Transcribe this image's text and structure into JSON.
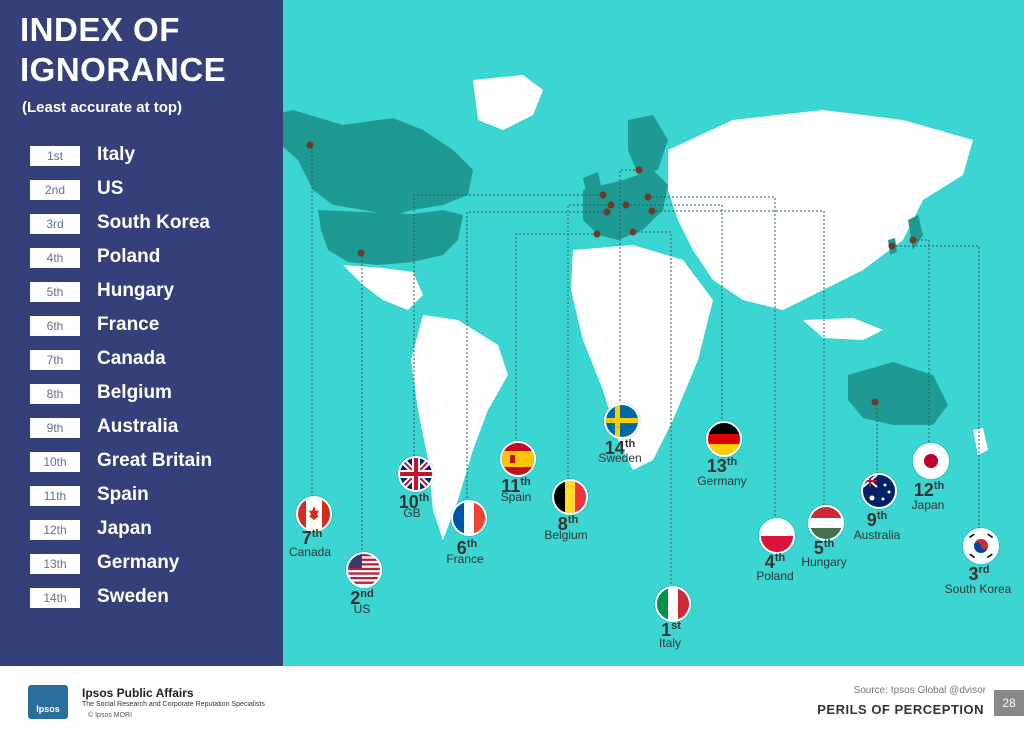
{
  "title_line1": "INDEX OF",
  "title_line2": "IGNORANCE",
  "subtitle": "(Least accurate at top)",
  "ranking": [
    {
      "rank": "1st",
      "country": "Italy"
    },
    {
      "rank": "2nd",
      "country": "US"
    },
    {
      "rank": "3rd",
      "country": "South Korea"
    },
    {
      "rank": "4th",
      "country": "Poland"
    },
    {
      "rank": "5th",
      "country": "Hungary"
    },
    {
      "rank": "6th",
      "country": "France"
    },
    {
      "rank": "7th",
      "country": "Canada"
    },
    {
      "rank": "8th",
      "country": "Belgium"
    },
    {
      "rank": "9th",
      "country": "Australia"
    },
    {
      "rank": "10th",
      "country": "Great Britain"
    },
    {
      "rank": "11th",
      "country": "Spain"
    },
    {
      "rank": "12th",
      "country": "Japan"
    },
    {
      "rank": "13th",
      "country": "Germany"
    },
    {
      "rank": "14th",
      "country": "Sweden"
    }
  ],
  "markers": [
    {
      "num": "7",
      "suf": "th",
      "label": "Canada",
      "flag": "canada"
    },
    {
      "num": "2",
      "suf": "nd",
      "label": "US",
      "flag": "us"
    },
    {
      "num": "10",
      "suf": "th",
      "label": "GB",
      "flag": "gb"
    },
    {
      "num": "6",
      "suf": "th",
      "label": "France",
      "flag": "france"
    },
    {
      "num": "11",
      "suf": "th",
      "label": "Spain",
      "flag": "spain"
    },
    {
      "num": "8",
      "suf": "th",
      "label": "Belgium",
      "flag": "belgium"
    },
    {
      "num": "14",
      "suf": "th",
      "label": "Sweden",
      "flag": "sweden"
    },
    {
      "num": "1",
      "suf": "st",
      "label": "Italy",
      "flag": "italy"
    },
    {
      "num": "13",
      "suf": "th",
      "label": "Germany",
      "flag": "germany"
    },
    {
      "num": "4",
      "suf": "th",
      "label": "Poland",
      "flag": "poland"
    },
    {
      "num": "5",
      "suf": "th",
      "label": "Hungary",
      "flag": "hungary"
    },
    {
      "num": "9",
      "suf": "th",
      "label": "Australia",
      "flag": "australia"
    },
    {
      "num": "12",
      "suf": "th",
      "label": "Japan",
      "flag": "japan"
    },
    {
      "num": "3",
      "suf": "rd",
      "label": "South Korea",
      "flag": "southkorea"
    }
  ],
  "footer": {
    "source": "Source: Ipsos Global @dvisor",
    "perils": "PERILS OF PERCEPTION",
    "page": "28",
    "logo_text": "Ipsos",
    "org": "Ipsos Public Affairs",
    "org_sub": "The Social Research and Corporate Reputation Specialists",
    "mori": "© Ipsos MORI"
  },
  "colors": {
    "panel": "#35407a",
    "ocean": "#3bd6d2",
    "highlight": "#1f9a93",
    "land": "#ffffff"
  }
}
